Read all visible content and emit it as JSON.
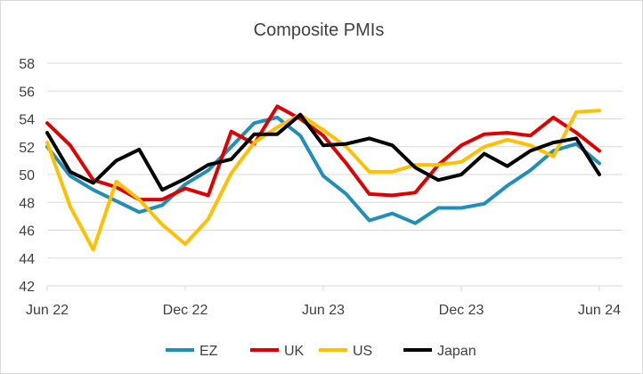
{
  "chart_data": {
    "type": "line",
    "title": "Composite PMIs",
    "xlabel": "",
    "ylabel": "",
    "ylim": [
      42,
      58
    ],
    "yticks": [
      42,
      44,
      46,
      48,
      50,
      52,
      54,
      56,
      58
    ],
    "x": [
      "Jun 22",
      "Jul 22",
      "Aug 22",
      "Sep 22",
      "Oct 22",
      "Nov 22",
      "Dec 22",
      "Jan 23",
      "Feb 23",
      "Mar 23",
      "Apr 23",
      "May 23",
      "Jun 23",
      "Jul 23",
      "Aug 23",
      "Sep 23",
      "Oct 23",
      "Nov 23",
      "Dec 23",
      "Jan 24",
      "Feb 24",
      "Mar 24",
      "Apr 24",
      "May 24",
      "Jun 24"
    ],
    "xtick_labels": [
      "Jun 22",
      "Dec 22",
      "Jun 23",
      "Dec 23",
      "Jun 24"
    ],
    "grid": true,
    "legend": "bottom",
    "series": [
      {
        "name": "EZ",
        "color": "#1f8fb8",
        "values": [
          52.0,
          49.9,
          48.9,
          48.1,
          47.3,
          47.8,
          49.3,
          50.3,
          52.0,
          53.7,
          54.1,
          52.8,
          49.9,
          48.6,
          46.7,
          47.2,
          46.5,
          47.6,
          47.6,
          47.9,
          49.2,
          50.3,
          51.7,
          52.2,
          50.8
        ]
      },
      {
        "name": "UK",
        "color": "#e00000",
        "values": [
          53.7,
          52.1,
          49.6,
          49.1,
          48.2,
          48.2,
          49.0,
          48.5,
          53.1,
          52.2,
          54.9,
          54.0,
          52.8,
          50.8,
          48.6,
          48.5,
          48.7,
          50.7,
          52.1,
          52.9,
          53.0,
          52.8,
          54.1,
          53.0,
          51.7
        ]
      },
      {
        "name": "US",
        "color": "#ffc000",
        "values": [
          52.3,
          47.7,
          44.6,
          49.5,
          48.2,
          46.4,
          45.0,
          46.8,
          50.1,
          52.3,
          53.4,
          54.3,
          53.2,
          52.0,
          50.2,
          50.2,
          50.7,
          50.7,
          50.9,
          52.0,
          52.5,
          52.1,
          51.3,
          54.5,
          54.6
        ]
      },
      {
        "name": "Japan",
        "color": "#000000",
        "values": [
          53.0,
          50.2,
          49.4,
          51.0,
          51.8,
          48.9,
          49.7,
          50.7,
          51.1,
          52.9,
          52.9,
          54.3,
          52.1,
          52.2,
          52.6,
          52.1,
          50.5,
          49.6,
          50.0,
          51.5,
          50.6,
          51.7,
          52.3,
          52.6,
          50.0
        ]
      }
    ]
  }
}
